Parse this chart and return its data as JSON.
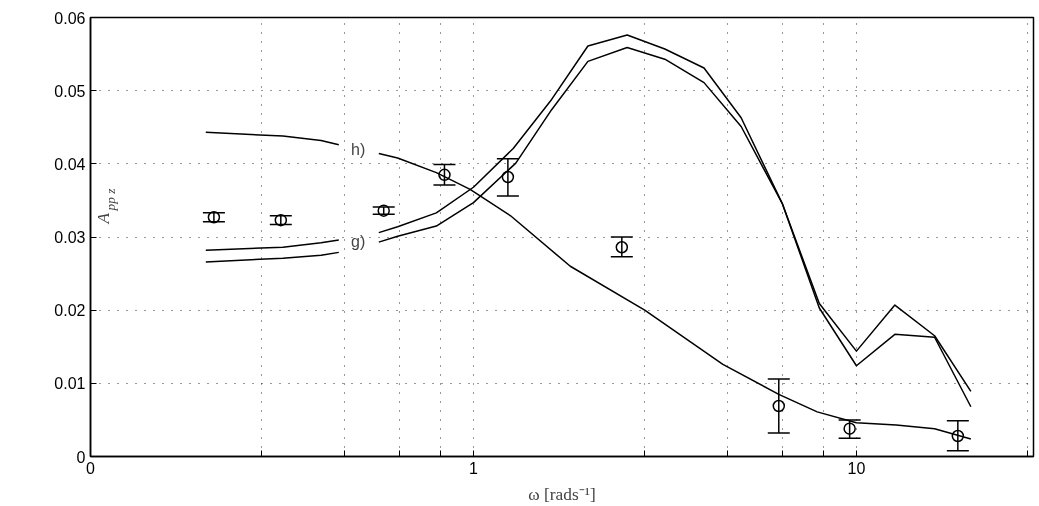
{
  "chart_data": {
    "type": "line",
    "xlabel": "ω [rads⁻¹]",
    "ylabel": "A$_{pp z}$",
    "log": "x",
    "grid": true,
    "line_style": "solid",
    "xlim": [
      0.1,
      29
    ],
    "ylim": [
      0,
      0.06
    ],
    "xticks": [
      {
        "value": 0.1,
        "label": "0"
      },
      {
        "value": 0.28,
        "label": null
      },
      {
        "value": 0.46,
        "label": null
      },
      {
        "value": 0.64,
        "label": null
      },
      {
        "value": 0.82,
        "label": null
      },
      1,
      {
        "value": 2.8,
        "label": null
      },
      {
        "value": 4.6,
        "label": null
      },
      {
        "value": 6.4,
        "label": null
      },
      {
        "value": 8.2,
        "label": null
      },
      10,
      {
        "value": 28,
        "label": null
      }
    ],
    "yticks": [
      0,
      0.01,
      0.02,
      0.03,
      0.04,
      0.05,
      0.06
    ],
    "annotations": [
      "h)",
      "g)"
    ],
    "series": [
      {
        "color": "#000000",
        "x": [
          0.2,
          0.318,
          0.4,
          0.445,
          0.5,
          0.566,
          0.634,
          0.8,
          0.98,
          1.25,
          1.79,
          2.8,
          4.48,
          6.27,
          7.9,
          10,
          12.7,
          16,
          19.9
        ],
        "values": [
          0.0443,
          0.0438,
          0.0432,
          0.0426,
          null,
          0.0414,
          0.0408,
          0.0388,
          0.0365,
          0.0329,
          0.026,
          0.02,
          0.0126,
          0.0085,
          0.0061,
          0.0046,
          0.0043,
          0.0038,
          0.0024
        ]
      },
      {
        "color": "#000000",
        "x": [
          0.2,
          0.318,
          0.4,
          0.445,
          0.5,
          0.566,
          0.634,
          0.8,
          1.0,
          1.27,
          1.6,
          1.99,
          2.52,
          3.16,
          4.0,
          5.0,
          6.4,
          8.0,
          10,
          12.6,
          16,
          19.9
        ],
        "values": [
          0.0282,
          0.0286,
          0.0292,
          0.0296,
          null,
          0.0306,
          0.0314,
          0.0333,
          0.0368,
          0.0421,
          0.0488,
          0.0561,
          0.0576,
          0.0557,
          0.0531,
          0.0463,
          0.0346,
          0.0209,
          0.0144,
          0.0207,
          0.0165,
          0.0089
        ]
      },
      {
        "color": "#000000",
        "x": [
          0.2,
          0.318,
          0.4,
          0.445,
          0.5,
          0.566,
          0.634,
          0.8,
          1.0,
          1.29,
          1.6,
          1.99,
          2.52,
          3.16,
          4.0,
          5.0,
          6.4,
          8.0,
          10,
          12.6,
          16,
          19.9
        ],
        "values": [
          0.0266,
          0.0271,
          0.0275,
          0.0279,
          null,
          0.0293,
          0.0301,
          0.0315,
          0.0347,
          0.0401,
          0.0474,
          0.054,
          0.0559,
          0.0543,
          0.0511,
          0.0451,
          0.0346,
          0.0203,
          0.0124,
          0.0167,
          0.0163,
          0.0068
        ]
      },
      {
        "type": "scatter",
        "marker": "circle",
        "color": "#000000",
        "x": [
          0.21,
          0.314,
          0.583,
          0.84,
          1.23,
          2.44,
          6.27,
          9.6,
          18.4
        ],
        "values": [
          0.0327,
          0.0323,
          0.0336,
          0.0385,
          0.0382,
          0.0286,
          0.0069,
          0.0038,
          0.0028
        ],
        "errors": [
          [
            0.0321,
            0.0333
          ],
          [
            0.0317,
            0.0329
          ],
          [
            0.0331,
            0.0341
          ],
          [
            0.0371,
            0.0399
          ],
          [
            0.0356,
            0.0407
          ],
          [
            0.0273,
            0.03
          ],
          [
            0.0032,
            0.0106
          ],
          [
            0.0025,
            0.005
          ],
          [
            0.0008,
            0.0049
          ]
        ]
      }
    ]
  }
}
